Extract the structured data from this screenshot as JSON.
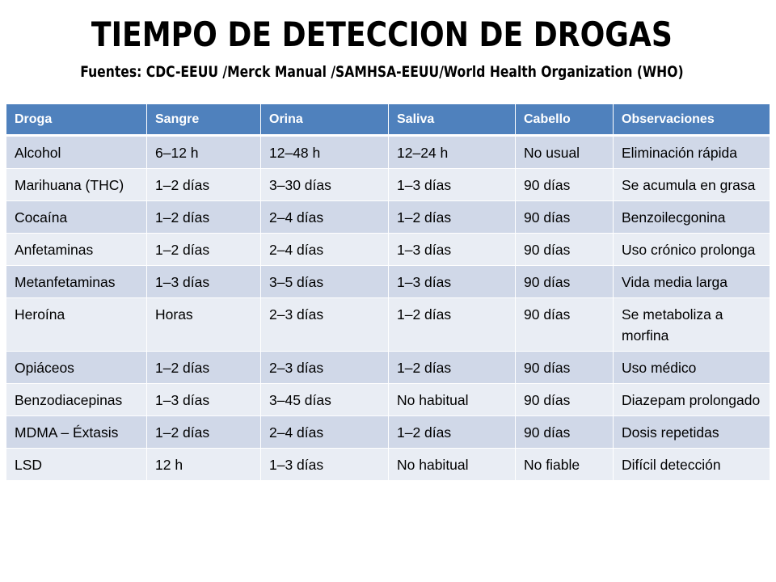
{
  "title": "TIEMPO DE DETECCION DE DROGAS",
  "subtitle": "Fuentes: CDC-EEUU /Merck Manual /SAMHSA-EEUU/World Health Organization (WHO)",
  "table": {
    "headers": [
      "Droga",
      "Sangre",
      "Orina",
      "Saliva",
      "Cabello",
      "Observaciones"
    ],
    "rows": [
      [
        "Alcohol",
        "6–12 h",
        "12–48 h",
        "12–24 h",
        "No usual",
        "Eliminación rápida"
      ],
      [
        "Marihuana (THC)",
        "1–2 días",
        "3–30 días",
        "1–3 días",
        "90 días",
        "Se acumula en grasa"
      ],
      [
        "Cocaína",
        "1–2 días",
        "2–4 días",
        "1–2 días",
        "90 días",
        "Benzoilecgonina"
      ],
      [
        "Anfetaminas",
        "1–2 días",
        "2–4 días",
        "1–3 días",
        "90 días",
        "Uso crónico prolonga"
      ],
      [
        "Metanfetaminas",
        "1–3 días",
        "3–5 días",
        "1–3 días",
        "90 días",
        "Vida media larga"
      ],
      [
        "Heroína",
        "Horas",
        "2–3 días",
        "1–2 días",
        "90 días",
        "Se metaboliza a morfina"
      ],
      [
        "Opiáceos",
        "1–2 días",
        "2–3 días",
        "1–2 días",
        "90 días",
        "Uso médico"
      ],
      [
        "Benzodiacepinas",
        "1–3 días",
        "3–45 días",
        "No habitual",
        "90 días",
        "Diazepam prolongado"
      ],
      [
        "MDMA – Éxtasis",
        "1–2 días",
        "2–4 días",
        "1–2 días",
        "90 días",
        "Dosis repetidas"
      ],
      [
        "LSD",
        "12 h",
        "1–3 días",
        "No habitual",
        "No fiable",
        "Difícil detección"
      ]
    ]
  },
  "colors": {
    "header_bg": "#4f81bd",
    "row_odd_bg": "#d0d8e8",
    "row_even_bg": "#e9edf4"
  }
}
